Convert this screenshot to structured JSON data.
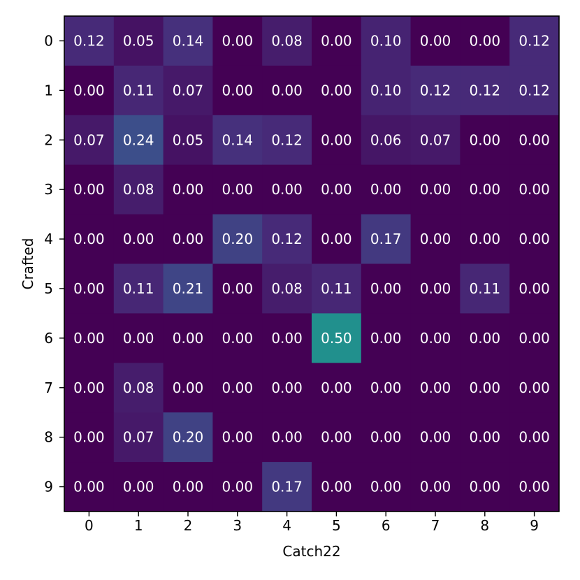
{
  "chart_data": {
    "type": "heatmap",
    "title": "",
    "xlabel": "Catch22",
    "ylabel": "Crafted",
    "x_categories": [
      "0",
      "1",
      "2",
      "3",
      "4",
      "5",
      "6",
      "7",
      "8",
      "9"
    ],
    "y_categories": [
      "0",
      "1",
      "2",
      "3",
      "4",
      "5",
      "6",
      "7",
      "8",
      "9"
    ],
    "colormap": "viridis",
    "vmin": 0.0,
    "vmax": 1.0,
    "value_format": "2 decimals",
    "values": [
      [
        0.12,
        0.05,
        0.14,
        0.0,
        0.08,
        0.0,
        0.1,
        0.0,
        0.0,
        0.12
      ],
      [
        0.0,
        0.11,
        0.07,
        0.0,
        0.0,
        0.0,
        0.1,
        0.12,
        0.12,
        0.12
      ],
      [
        0.07,
        0.24,
        0.05,
        0.14,
        0.12,
        0.0,
        0.06,
        0.07,
        0.0,
        0.0
      ],
      [
        0.0,
        0.08,
        0.0,
        0.0,
        0.0,
        0.0,
        0.0,
        0.0,
        0.0,
        0.0
      ],
      [
        0.0,
        0.0,
        0.0,
        0.2,
        0.12,
        0.0,
        0.17,
        0.0,
        0.0,
        0.0
      ],
      [
        0.0,
        0.11,
        0.21,
        0.0,
        0.08,
        0.11,
        0.0,
        0.0,
        0.11,
        0.0
      ],
      [
        0.0,
        0.0,
        0.0,
        0.0,
        0.0,
        0.5,
        0.0,
        0.0,
        0.0,
        0.0
      ],
      [
        0.0,
        0.08,
        0.0,
        0.0,
        0.0,
        0.0,
        0.0,
        0.0,
        0.0,
        0.0
      ],
      [
        0.0,
        0.07,
        0.2,
        0.0,
        0.0,
        0.0,
        0.0,
        0.0,
        0.0,
        0.0
      ],
      [
        0.0,
        0.0,
        0.0,
        0.0,
        0.17,
        0.0,
        0.0,
        0.0,
        0.0,
        0.0
      ]
    ],
    "grid": false,
    "colors": {
      "label_on_dark": "#ffffff",
      "axis": "#000000",
      "background": "#ffffff"
    }
  }
}
